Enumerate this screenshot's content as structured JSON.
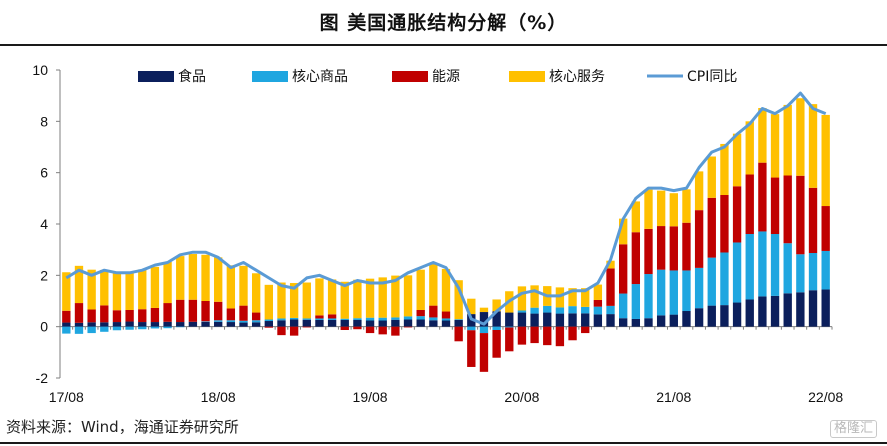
{
  "title": "图  美国通胀结构分解（%）",
  "source": "资料来源：Wind，海通证券研究所",
  "watermark": "格隆汇",
  "colors": {
    "food": "#0b1f5c",
    "core_goods": "#1fa6e0",
    "energy": "#c00000",
    "core_services": "#ffc000",
    "cpi_line": "#5b9bd5",
    "axis": "#7f7f7f"
  },
  "chart_data": {
    "type": "bar",
    "stacked": true,
    "title": "美国通胀结构分解（%）",
    "ylim": [
      -2,
      10
    ],
    "yticks": [
      -2,
      0,
      2,
      4,
      6,
      8,
      10
    ],
    "xtick_labels": [
      "17/08",
      "18/08",
      "19/08",
      "20/08",
      "21/08",
      "22/08"
    ],
    "xtick_index": [
      0,
      12,
      24,
      36,
      48,
      60
    ],
    "categories": [
      "2017-08",
      "2017-09",
      "2017-10",
      "2017-11",
      "2017-12",
      "2018-01",
      "2018-02",
      "2018-03",
      "2018-04",
      "2018-05",
      "2018-06",
      "2018-07",
      "2018-08",
      "2018-09",
      "2018-10",
      "2018-11",
      "2018-12",
      "2019-01",
      "2019-02",
      "2019-03",
      "2019-04",
      "2019-05",
      "2019-06",
      "2019-07",
      "2019-08",
      "2019-09",
      "2019-10",
      "2019-11",
      "2019-12",
      "2020-01",
      "2020-02",
      "2020-03",
      "2020-04",
      "2020-05",
      "2020-06",
      "2020-07",
      "2020-08",
      "2020-09",
      "2020-10",
      "2020-11",
      "2020-12",
      "2021-01",
      "2021-02",
      "2021-03",
      "2021-04",
      "2021-05",
      "2021-06",
      "2021-07",
      "2021-08",
      "2021-09",
      "2021-10",
      "2021-11",
      "2021-12",
      "2022-01",
      "2022-02",
      "2022-03",
      "2022-04",
      "2022-05",
      "2022-06",
      "2022-07",
      "2022-08"
    ],
    "series": [
      {
        "name": "食品",
        "key": "food",
        "values": [
          0.16,
          0.15,
          0.17,
          0.17,
          0.18,
          0.2,
          0.18,
          0.18,
          0.19,
          0.18,
          0.19,
          0.19,
          0.19,
          0.18,
          0.16,
          0.17,
          0.22,
          0.25,
          0.28,
          0.27,
          0.26,
          0.26,
          0.26,
          0.26,
          0.24,
          0.24,
          0.27,
          0.28,
          0.28,
          0.25,
          0.24,
          0.26,
          0.49,
          0.57,
          0.6,
          0.55,
          0.55,
          0.51,
          0.55,
          0.51,
          0.52,
          0.52,
          0.48,
          0.49,
          0.33,
          0.3,
          0.33,
          0.44,
          0.47,
          0.61,
          0.72,
          0.82,
          0.84,
          0.94,
          1.06,
          1.18,
          1.2,
          1.3,
          1.34,
          1.42,
          1.45
        ]
      },
      {
        "name": "核心商品",
        "key": "core_goods",
        "values": [
          -0.27,
          -0.28,
          -0.25,
          -0.2,
          -0.14,
          -0.12,
          -0.1,
          -0.07,
          -0.06,
          -0.02,
          0.0,
          0.02,
          0.06,
          0.07,
          0.07,
          0.08,
          0.06,
          0.07,
          0.06,
          0.05,
          0.06,
          0.06,
          0.05,
          0.07,
          0.11,
          0.11,
          0.09,
          0.12,
          0.13,
          0.11,
          0.08,
          0.03,
          -0.14,
          -0.25,
          -0.13,
          -0.03,
          0.08,
          0.23,
          0.26,
          0.24,
          0.28,
          0.25,
          0.3,
          0.32,
          0.96,
          1.36,
          1.72,
          1.78,
          1.72,
          1.58,
          1.57,
          1.87,
          2.05,
          2.34,
          2.55,
          2.53,
          2.41,
          1.95,
          1.48,
          1.45,
          1.5
        ]
      },
      {
        "name": "能源",
        "key": "energy",
        "values": [
          0.46,
          0.77,
          0.5,
          0.66,
          0.46,
          0.45,
          0.5,
          0.55,
          0.73,
          0.87,
          0.86,
          0.79,
          0.72,
          0.46,
          0.59,
          0.3,
          -0.04,
          -0.33,
          -0.35,
          -0.03,
          0.12,
          0.16,
          -0.13,
          -0.1,
          -0.25,
          -0.3,
          -0.35,
          -0.03,
          0.24,
          0.46,
          0.27,
          -0.57,
          -1.43,
          -1.51,
          -1.08,
          -0.93,
          -0.7,
          -0.64,
          -0.72,
          -0.76,
          -0.53,
          -0.25,
          0.26,
          1.46,
          1.92,
          2.02,
          1.76,
          1.7,
          1.72,
          1.86,
          2.25,
          2.33,
          2.24,
          2.19,
          2.32,
          2.68,
          2.2,
          2.64,
          3.06,
          2.54,
          1.75
        ]
      },
      {
        "name": "核心服务",
        "key": "core_services",
        "values": [
          1.5,
          1.45,
          1.55,
          1.38,
          1.48,
          1.45,
          1.55,
          1.6,
          1.6,
          1.7,
          1.78,
          1.8,
          1.73,
          1.68,
          1.55,
          1.53,
          1.35,
          1.4,
          1.36,
          1.4,
          1.44,
          1.36,
          1.44,
          1.5,
          1.52,
          1.57,
          1.63,
          1.6,
          1.57,
          1.64,
          1.66,
          1.52,
          0.6,
          0.17,
          0.46,
          0.83,
          0.94,
          0.87,
          0.77,
          0.78,
          0.7,
          0.73,
          0.6,
          0.3,
          1.0,
          1.2,
          1.53,
          1.38,
          1.29,
          1.3,
          1.51,
          1.61,
          1.99,
          2.05,
          2.07,
          2.13,
          2.47,
          2.75,
          3.02,
          3.26,
          3.55
        ]
      }
    ],
    "line": {
      "name": "CPI同比",
      "values": [
        1.9,
        2.2,
        2.0,
        2.2,
        2.1,
        2.1,
        2.2,
        2.4,
        2.5,
        2.8,
        2.9,
        2.9,
        2.7,
        2.3,
        2.5,
        2.2,
        1.9,
        1.6,
        1.5,
        1.9,
        2.0,
        1.8,
        1.6,
        1.8,
        1.7,
        1.7,
        1.8,
        2.1,
        2.3,
        2.5,
        2.3,
        1.5,
        0.3,
        0.1,
        0.6,
        1.0,
        1.3,
        1.4,
        1.2,
        1.2,
        1.4,
        1.4,
        1.7,
        2.6,
        4.2,
        5.0,
        5.4,
        5.4,
        5.3,
        5.4,
        6.2,
        6.8,
        7.0,
        7.5,
        7.9,
        8.5,
        8.3,
        8.6,
        9.1,
        8.5,
        8.3
      ]
    }
  }
}
